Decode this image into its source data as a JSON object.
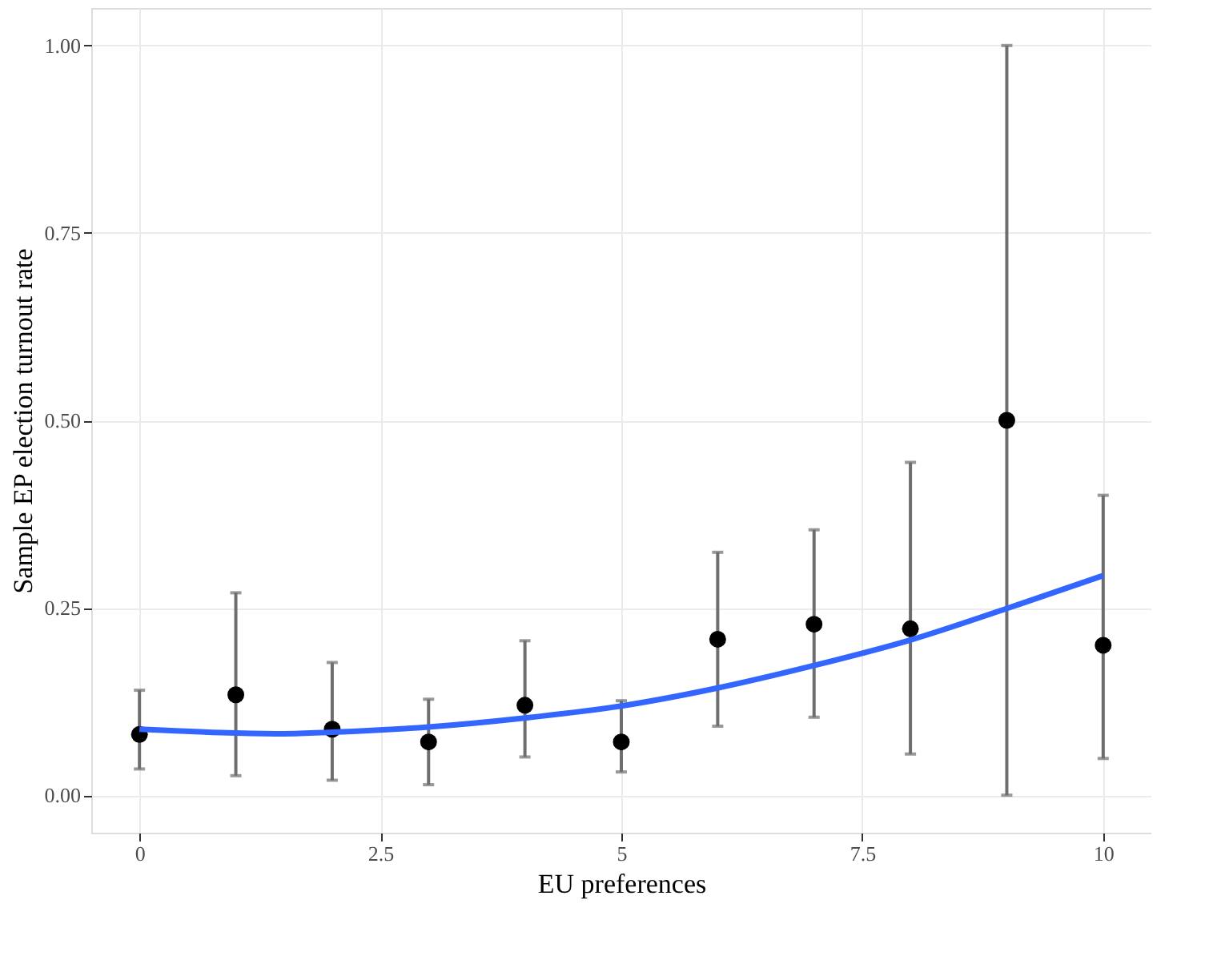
{
  "chart_data": {
    "type": "scatter",
    "xlabel": "EU preferences",
    "ylabel": "Sample EP election turnout rate",
    "x": [
      0,
      1,
      2,
      3,
      4,
      5,
      6,
      7,
      8,
      9,
      10
    ],
    "series": [
      {
        "type": "scatter",
        "color": "#000000",
        "marker": "circle",
        "values": [
          0.081,
          0.134,
          0.088,
          0.071,
          0.12,
          0.071,
          0.208,
          0.228,
          0.222,
          0.5,
          0.2
        ],
        "errors": [
          [
            0.035,
            0.14
          ],
          [
            0.026,
            0.27
          ],
          [
            0.02,
            0.177
          ],
          [
            0.014,
            0.128
          ],
          [
            0.051,
            0.206
          ],
          [
            0.031,
            0.126
          ],
          [
            0.092,
            0.324
          ],
          [
            0.104,
            0.354
          ],
          [
            0.055,
            0.444
          ],
          [
            0.0,
            1.0
          ],
          [
            0.049,
            0.4
          ]
        ]
      },
      {
        "type": "line",
        "color": "#3366ff",
        "marker": "none",
        "x": [
          0,
          1,
          1.5,
          2,
          3,
          4,
          5,
          6,
          7,
          8,
          9,
          10
        ],
        "values": [
          0.088,
          0.083,
          0.082,
          0.084,
          0.091,
          0.103,
          0.119,
          0.143,
          0.173,
          0.207,
          0.249,
          0.293
        ]
      }
    ],
    "xlim": [
      -0.5,
      10.5
    ],
    "ylim": [
      -0.05,
      1.05
    ],
    "xticks": [
      0,
      {
        "value": 2.5,
        "label": "2.5"
      },
      5,
      {
        "value": 7.5,
        "label": "7.5"
      },
      10
    ],
    "yticks": [
      {
        "value": 0,
        "label": "0.00"
      },
      {
        "value": 0.25,
        "label": "0.25"
      },
      {
        "value": 0.5,
        "label": "0.50"
      },
      {
        "value": 0.75,
        "label": "0.75"
      },
      {
        "value": 1,
        "label": "1.00"
      }
    ],
    "grid": true
  }
}
